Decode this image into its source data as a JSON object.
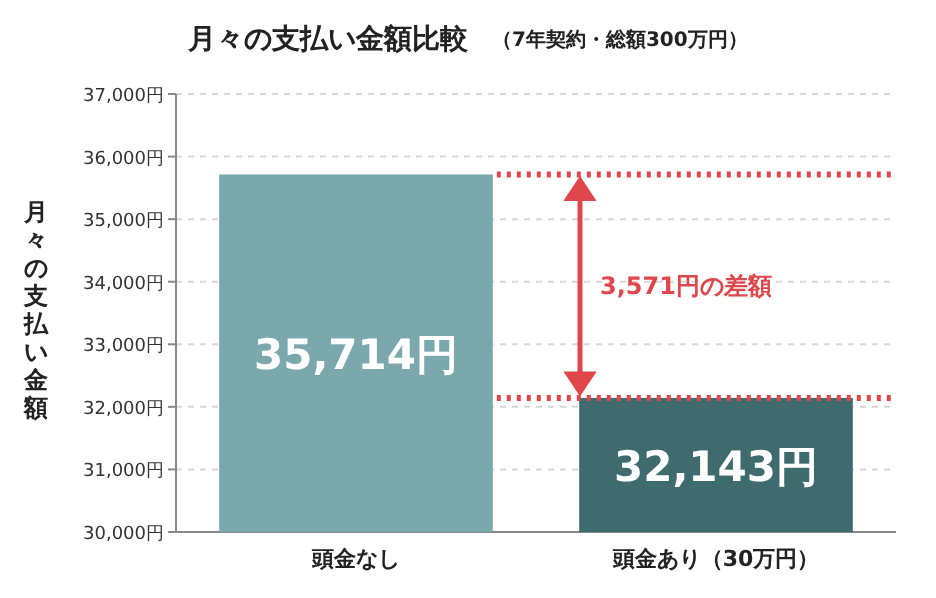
{
  "chart_data": {
    "type": "bar",
    "title": "月々の支払い金額比較",
    "subtitle": "（7年契約・総額300万円）",
    "ylabel": "月々の支払い金額",
    "categories": [
      "頭金なし",
      "頭金あり（30万円）"
    ],
    "values": [
      35714,
      32143
    ],
    "colors": [
      "#7aa8ad",
      "#3f6b6e"
    ],
    "value_labels": [
      "35,714円",
      "32,143円"
    ],
    "ylim": [
      30000,
      37000
    ],
    "yticks": [
      {
        "value": 30000,
        "label": "30,000円"
      },
      {
        "value": 31000,
        "label": "31,000円"
      },
      {
        "value": 32000,
        "label": "32,000円"
      },
      {
        "value": 33000,
        "label": "33,000円"
      },
      {
        "value": 34000,
        "label": "34,000円"
      },
      {
        "value": 35000,
        "label": "35,000円"
      },
      {
        "value": 36000,
        "label": "36,000円"
      },
      {
        "value": 37000,
        "label": "37,000円"
      }
    ],
    "grid": "y",
    "ref_lines": [
      {
        "axis": "y",
        "value": 35714,
        "color": "#e0474c",
        "line_style": "dotted"
      },
      {
        "axis": "y",
        "value": 32143,
        "color": "#e0474c",
        "line_style": "dotted"
      }
    ],
    "annotations": [
      "3,571円の差額"
    ]
  }
}
